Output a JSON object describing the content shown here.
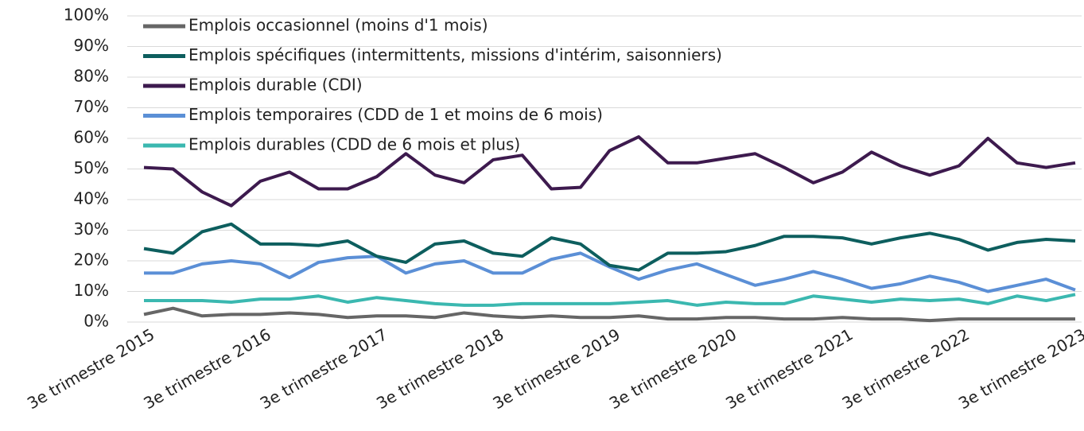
{
  "chart_data": {
    "type": "line",
    "categories": [
      "3e trimestre 2015",
      null,
      null,
      null,
      "3e trimestre 2016",
      null,
      null,
      null,
      "3e trimestre 2017",
      null,
      null,
      null,
      "3e trimestre 2018",
      null,
      null,
      null,
      "3e trimestre 2019",
      null,
      null,
      null,
      "3e trimestre 2020",
      null,
      null,
      null,
      "3e trimestre 2021",
      null,
      null,
      null,
      "3e trimestre 2022",
      null,
      null,
      null,
      "3e trimestre 2023"
    ],
    "ylim": [
      0,
      100
    ],
    "yticks": [
      {
        "value": 0,
        "label": "0%"
      },
      {
        "value": 10,
        "label": "10%"
      },
      {
        "value": 20,
        "label": "20%"
      },
      {
        "value": 30,
        "label": "30%"
      },
      {
        "value": 40,
        "label": "40%"
      },
      {
        "value": 50,
        "label": "50%"
      },
      {
        "value": 60,
        "label": "60%"
      },
      {
        "value": 70,
        "label": "70%"
      },
      {
        "value": 80,
        "label": "80%"
      },
      {
        "value": 90,
        "label": "90%"
      },
      {
        "value": 100,
        "label": "100%"
      }
    ],
    "grid": true,
    "series": [
      {
        "name": "Emplois occasionnel (moins d'1 mois)",
        "color": "#666666",
        "values": [
          2.5,
          4.5,
          2,
          2.5,
          2.5,
          3,
          2.5,
          1.5,
          2,
          2,
          1.5,
          3,
          2,
          1.5,
          2,
          1.5,
          1.5,
          2,
          1,
          1,
          1.5,
          1.5,
          1,
          1,
          1.5,
          1,
          1,
          0.5,
          1,
          1,
          1,
          1,
          1
        ]
      },
      {
        "name": "Emplois spécifiques (intermittents, missions d'intérim, saisonniers)",
        "color": "#0d5e5e",
        "values": [
          24,
          22.5,
          29.5,
          32,
          25.5,
          25.5,
          25,
          26.5,
          21.5,
          19.5,
          25.5,
          26.5,
          22.5,
          21.5,
          27.5,
          25.5,
          18.5,
          17,
          22.5,
          22.5,
          23,
          25,
          28,
          28,
          27.5,
          25.5,
          27.5,
          29,
          27,
          23.5,
          26,
          27,
          26.5
        ]
      },
      {
        "name": "Emplois durable (CDI)",
        "color": "#3d1a4e",
        "values": [
          50.5,
          50,
          42.5,
          38,
          46,
          49,
          43.5,
          43.5,
          47.5,
          55,
          48,
          45.5,
          53,
          54.5,
          43.5,
          44,
          56,
          60.5,
          52,
          52,
          53.5,
          55,
          50.5,
          45.5,
          49,
          55.5,
          51,
          48,
          51,
          60,
          52,
          50.5,
          52
        ]
      },
      {
        "name": "Emplois temporaires (CDD de 1 et moins de 6 mois)",
        "color": "#5b8fd6",
        "values": [
          16,
          16,
          19,
          20,
          19,
          14.5,
          19.5,
          21,
          21.5,
          16,
          19,
          20,
          16,
          16,
          20.5,
          22.5,
          18,
          14,
          17,
          19,
          15.5,
          12,
          14,
          16.5,
          14,
          11,
          12.5,
          15,
          13,
          10,
          12,
          14,
          10.5
        ]
      },
      {
        "name": "Emplois durables (CDD de 6 mois et plus)",
        "color": "#3bb8b0",
        "values": [
          7,
          7,
          7,
          6.5,
          7.5,
          7.5,
          8.5,
          6.5,
          8,
          7,
          6,
          5.5,
          5.5,
          6,
          6,
          6,
          6,
          6.5,
          7,
          5.5,
          6.5,
          6,
          6,
          8.5,
          7.5,
          6.5,
          7.5,
          7,
          7.5,
          6,
          8.5,
          7,
          9
        ]
      }
    ]
  }
}
